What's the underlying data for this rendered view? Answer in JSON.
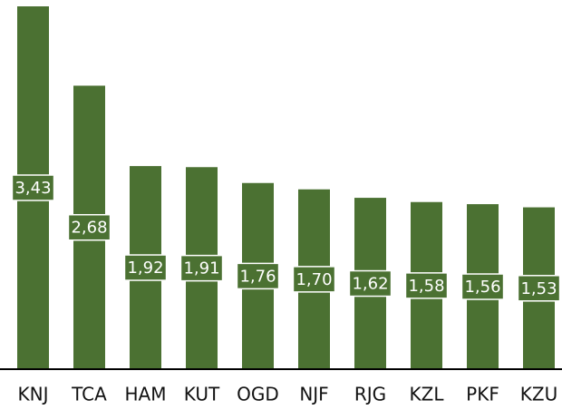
{
  "chart_data": {
    "type": "bar",
    "categories": [
      "KNJ",
      "TCA",
      "HAM",
      "KUT",
      "OGD",
      "NJF",
      "RJG",
      "KZL",
      "PKF",
      "KZU"
    ],
    "values": [
      3.43,
      2.68,
      1.92,
      1.91,
      1.76,
      1.7,
      1.62,
      1.58,
      1.56,
      1.53
    ],
    "value_labels": [
      "3,43",
      "2,68",
      "1,92",
      "1,91",
      "1,76",
      "1,70",
      "1,62",
      "1,58",
      "1,56",
      "1,53"
    ],
    "color": "#4b7132",
    "ylim": [
      0,
      3.43
    ]
  }
}
